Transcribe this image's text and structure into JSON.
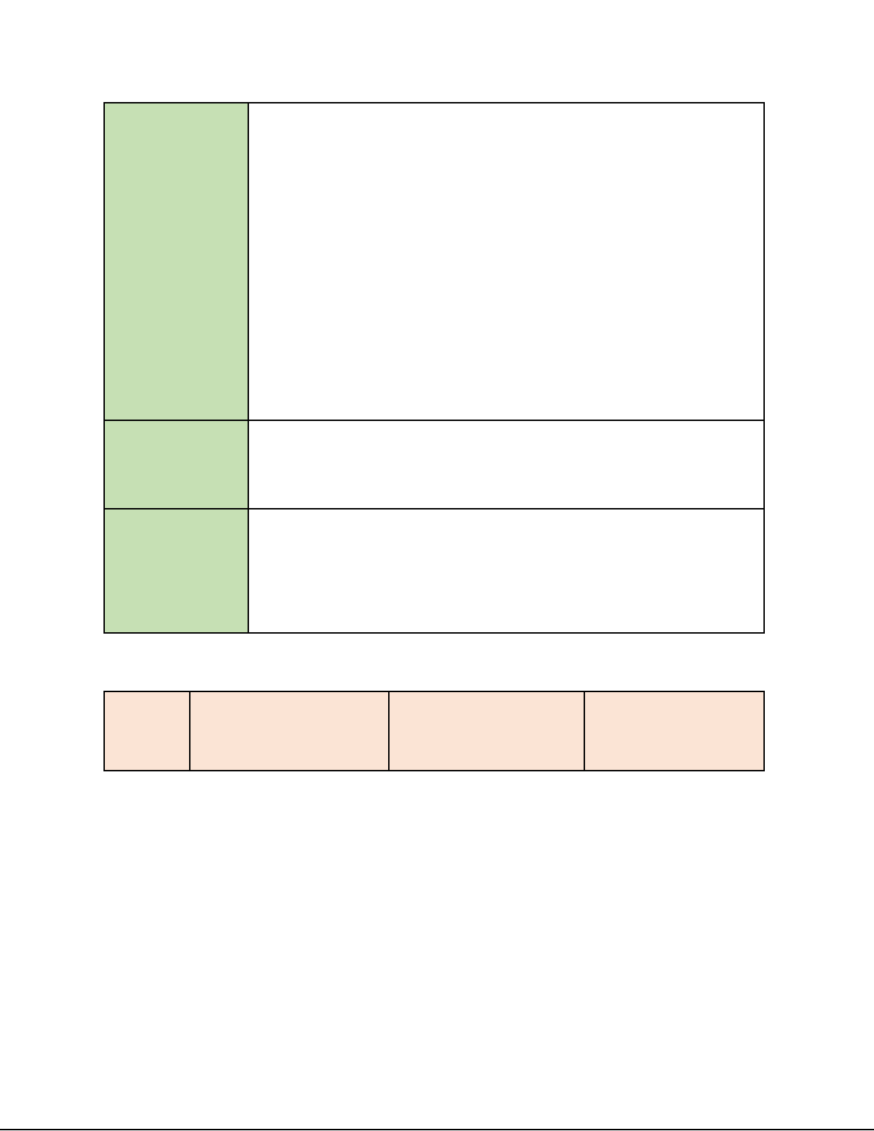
{
  "colors": {
    "label_cell": "#c6e0b4",
    "header_row": "#fbe4d5",
    "border": "#000000"
  },
  "table1": {
    "rows": [
      {
        "label": "",
        "value": ""
      },
      {
        "label": "",
        "value": ""
      },
      {
        "label": "",
        "value": ""
      }
    ]
  },
  "table2": {
    "cells": [
      "",
      "",
      "",
      ""
    ]
  }
}
